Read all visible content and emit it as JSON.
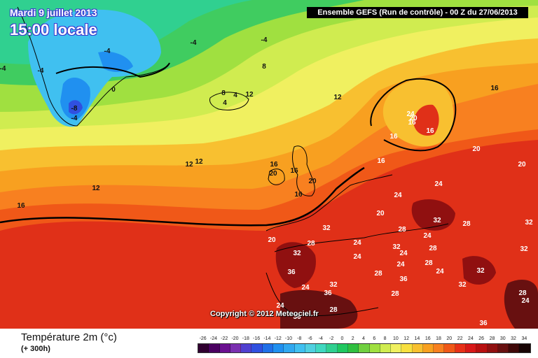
{
  "header": {
    "date": "Mardi 9 juillet 2013",
    "local_time": "15:00 locale",
    "run_info": "Ensemble GEFS (Run de contrôle)  -  00 Z du 27/06/2013"
  },
  "footer": {
    "copyright": "Copyright © 2012 Meteociel.fr",
    "legend_title": "Température 2m (°c)",
    "legend_subtitle": "(+ 300h)"
  },
  "scale": {
    "values": [
      "-26",
      "-24",
      "-22",
      "-20",
      "-18",
      "-16",
      "-14",
      "-12",
      "-10",
      "-8",
      "-6",
      "-4",
      "-2",
      "0",
      "2",
      "4",
      "6",
      "8",
      "10",
      "12",
      "14",
      "16",
      "18",
      "20",
      "22",
      "24",
      "26",
      "28",
      "30",
      "32",
      "34"
    ],
    "colors": [
      "#300030",
      "#4a0060",
      "#6a1090",
      "#7a30b0",
      "#5040d0",
      "#3050e0",
      "#2070e8",
      "#2090f0",
      "#30a8f0",
      "#40c0f0",
      "#50d0e0",
      "#40d8c0",
      "#30d090",
      "#20c860",
      "#30c040",
      "#70d040",
      "#a0e040",
      "#d0ec50",
      "#f0f060",
      "#f8e040",
      "#f8c030",
      "#f8a020",
      "#f88020",
      "#f05818",
      "#e83018",
      "#d81818",
      "#b81010",
      "#901010",
      "#681010",
      "#400808",
      "#180404"
    ]
  },
  "map_labels": [
    {
      "t": "-4",
      "kind": "cold"
    },
    {
      "t": "-4",
      "kind": "cold"
    },
    {
      "t": "-4",
      "kind": "cold"
    },
    {
      "t": "-4",
      "kind": "cold"
    },
    {
      "t": "-4",
      "kind": "cold"
    },
    {
      "t": "-4",
      "kind": "cold"
    },
    {
      "t": "-8",
      "kind": "cold"
    },
    {
      "t": "0",
      "kind": "cold"
    },
    {
      "t": "8",
      "kind": "cold"
    },
    {
      "t": "8",
      "kind": "cold"
    },
    {
      "t": "4",
      "kind": "cold"
    },
    {
      "t": "4",
      "kind": "cold"
    },
    {
      "t": "12",
      "kind": "cold"
    },
    {
      "t": "12",
      "kind": "cold"
    },
    {
      "t": "12",
      "kind": "cold"
    },
    {
      "t": "12",
      "kind": "cold"
    },
    {
      "t": "12",
      "kind": "cold"
    },
    {
      "t": "16",
      "kind": "cold"
    },
    {
      "t": "16",
      "kind": "cold"
    },
    {
      "t": "16",
      "kind": "cold"
    },
    {
      "t": "16",
      "kind": "cold"
    },
    {
      "t": "20",
      "kind": "cold"
    },
    {
      "t": "20",
      "kind": "cold"
    },
    {
      "t": "16",
      "kind": "cold"
    },
    {
      "t": "24",
      "kind": "hot"
    },
    {
      "t": "20",
      "kind": "hot"
    },
    {
      "t": "16",
      "kind": "hot"
    },
    {
      "t": "16",
      "kind": "hot"
    },
    {
      "t": "16",
      "kind": "hot"
    },
    {
      "t": "16",
      "kind": "hot"
    },
    {
      "t": "20",
      "kind": "hot"
    },
    {
      "t": "20",
      "kind": "hot"
    },
    {
      "t": "24",
      "kind": "hot"
    },
    {
      "t": "24",
      "kind": "hot"
    },
    {
      "t": "20",
      "kind": "hot"
    },
    {
      "t": "32",
      "kind": "hot"
    },
    {
      "t": "28",
      "kind": "hot"
    },
    {
      "t": "32",
      "kind": "hot"
    },
    {
      "t": "28",
      "kind": "hot"
    },
    {
      "t": "24",
      "kind": "hot"
    },
    {
      "t": "28",
      "kind": "hot"
    },
    {
      "t": "32",
      "kind": "hot"
    },
    {
      "t": "32",
      "kind": "hot"
    },
    {
      "t": "32",
      "kind": "hot"
    },
    {
      "t": "20",
      "kind": "hot"
    },
    {
      "t": "36",
      "kind": "hot"
    },
    {
      "t": "24",
      "kind": "hot"
    },
    {
      "t": "32",
      "kind": "hot"
    },
    {
      "t": "36",
      "kind": "hot"
    },
    {
      "t": "24",
      "kind": "hot"
    },
    {
      "t": "28",
      "kind": "hot"
    },
    {
      "t": "24",
      "kind": "hot"
    },
    {
      "t": "28",
      "kind": "hot"
    },
    {
      "t": "24",
      "kind": "hot"
    },
    {
      "t": "28",
      "kind": "hot"
    },
    {
      "t": "36",
      "kind": "hot"
    },
    {
      "t": "24",
      "kind": "hot"
    },
    {
      "t": "32",
      "kind": "hot"
    },
    {
      "t": "28",
      "kind": "hot"
    },
    {
      "t": "36",
      "kind": "hot"
    },
    {
      "t": "36",
      "kind": "hot"
    },
    {
      "t": "32",
      "kind": "hot"
    },
    {
      "t": "24",
      "kind": "hot"
    },
    {
      "t": "28",
      "kind": "hot"
    },
    {
      "t": "28",
      "kind": "hot"
    },
    {
      "t": "24",
      "kind": "hot"
    },
    {
      "t": "32",
      "kind": "hot"
    },
    {
      "t": "24",
      "kind": "hot"
    }
  ]
}
